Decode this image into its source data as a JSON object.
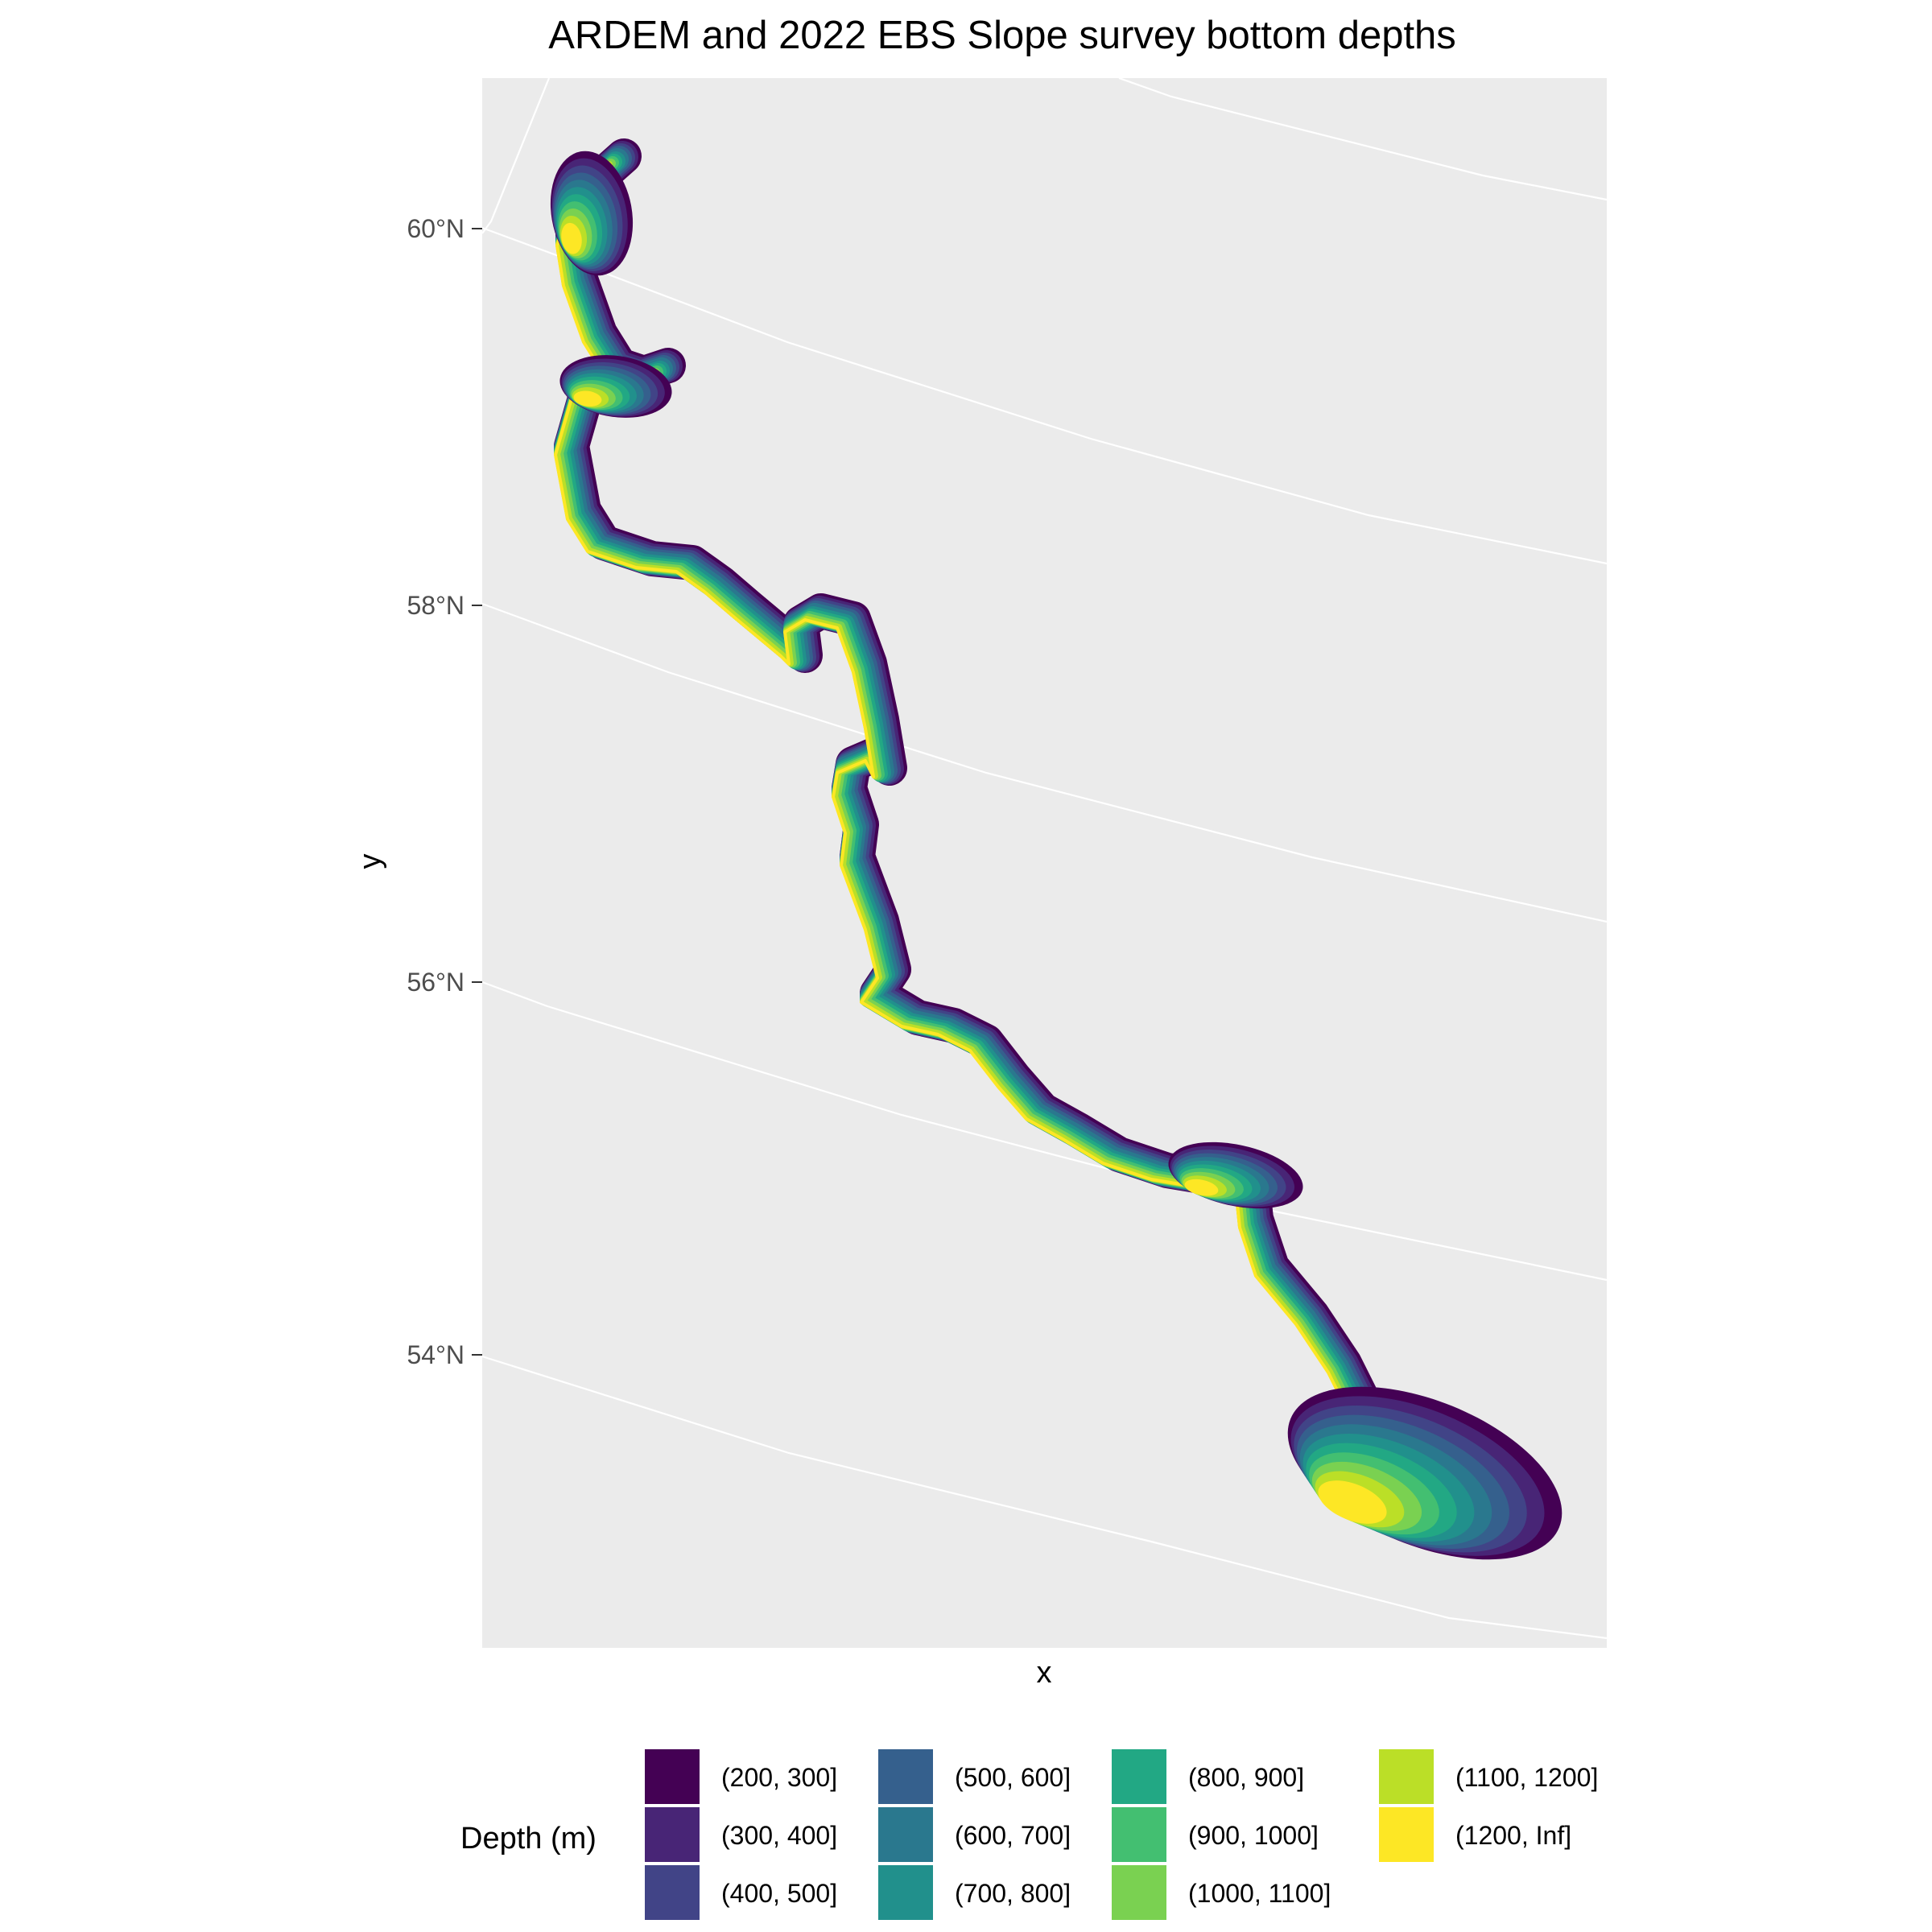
{
  "chart_data": {
    "type": "map",
    "title": "ARDEM and 2022 EBS Slope survey bottom depths",
    "xlabel": "x",
    "ylabel": "y",
    "y_ticks": [
      "60°N",
      "58°N",
      "56°N",
      "54°N"
    ],
    "grid_color": "#ffffff",
    "panel_color": "#ebebeb",
    "legend": {
      "title": "Depth (m)",
      "position": "bottom",
      "items": [
        {
          "label": "(200, 300]",
          "color": "#440154"
        },
        {
          "label": "(300, 400]",
          "color": "#482576"
        },
        {
          "label": "(400, 500]",
          "color": "#414487"
        },
        {
          "label": "(500, 600]",
          "color": "#35608D"
        },
        {
          "label": "(600, 700]",
          "color": "#2A788E"
        },
        {
          "label": "(700, 800]",
          "color": "#21908C"
        },
        {
          "label": "(800, 900]",
          "color": "#22A884"
        },
        {
          "label": "(900, 1000]",
          "color": "#43BF71"
        },
        {
          "label": "(1000, 1100]",
          "color": "#7AD151"
        },
        {
          "label": "(1100, 1200]",
          "color": "#BBDF27"
        },
        {
          "label": "(1200, Inf]",
          "color": "#FDE725"
        }
      ]
    }
  }
}
